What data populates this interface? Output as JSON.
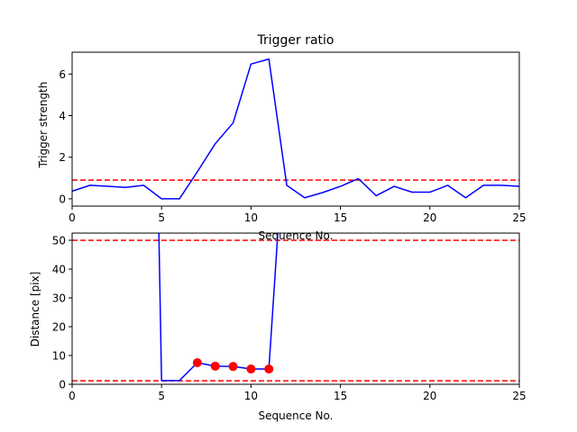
{
  "chart_data": [
    {
      "type": "line",
      "title": "Trigger ratio",
      "xlabel": "Sequence No.",
      "ylabel": "Trigger strength",
      "xlim": [
        0,
        25
      ],
      "ylim": [
        -0.35,
        7.05
      ],
      "xticks": [
        0,
        5,
        10,
        15,
        20,
        25
      ],
      "yticks": [
        0,
        2,
        4,
        6
      ],
      "grid": false,
      "series": [
        {
          "color": "#0000ff",
          "style": "solid",
          "x": [
            0,
            1,
            2,
            3,
            4,
            5,
            6,
            7,
            8,
            9,
            10,
            11,
            12,
            13,
            14,
            15,
            16,
            17,
            18,
            19,
            20,
            21,
            22,
            23,
            24,
            25
          ],
          "y": [
            0.37,
            0.65,
            0.6,
            0.55,
            0.65,
            0.0,
            0.0,
            1.3,
            2.65,
            3.65,
            6.48,
            6.72,
            0.65,
            0.05,
            0.3,
            0.6,
            0.97,
            0.15,
            0.6,
            0.32,
            0.32,
            0.65,
            0.05,
            0.65,
            0.65,
            0.6
          ]
        }
      ],
      "reference_lines": [
        {
          "y": 0.9,
          "color": "#ff0000",
          "style": "dashed"
        }
      ]
    },
    {
      "type": "line",
      "title": "",
      "xlabel": "Sequence No.",
      "ylabel": "Distance [pix]",
      "xlim": [
        0,
        25
      ],
      "ylim": [
        0,
        52.5
      ],
      "xticks": [
        0,
        5,
        10,
        15,
        20,
        25
      ],
      "yticks": [
        0,
        10,
        20,
        30,
        40,
        50
      ],
      "grid": false,
      "series": [
        {
          "color": "#0000ff",
          "style": "solid",
          "x": [
            4.85,
            5.0,
            6.0,
            7.0,
            8.0,
            9.0,
            10.0,
            11.0,
            11.5
          ],
          "y": [
            52.5,
            1.3,
            1.3,
            7.5,
            6.3,
            6.2,
            5.3,
            5.3,
            52.5
          ]
        }
      ],
      "markers": {
        "color": "#ff0000",
        "x": [
          7,
          8,
          9,
          10,
          11
        ],
        "y": [
          7.5,
          6.3,
          6.2,
          5.3,
          5.3
        ]
      },
      "reference_lines": [
        {
          "y": 50,
          "color": "#ff0000",
          "style": "dashed"
        },
        {
          "y": 1.2,
          "color": "#ff0000",
          "style": "dashed"
        }
      ]
    }
  ]
}
